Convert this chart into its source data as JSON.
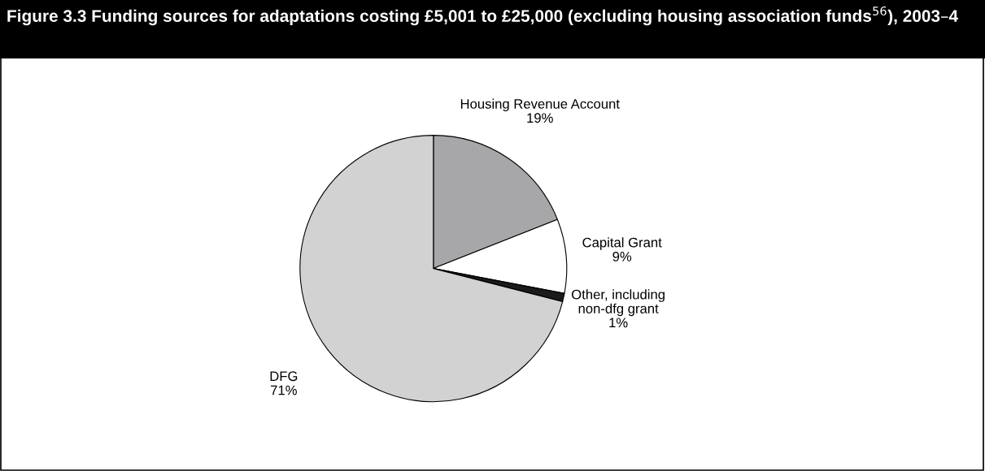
{
  "chart_data": {
    "type": "pie",
    "title": "Figure 3.3 Funding sources for adaptations costing £5,001 to £25,000 (excluding housing association funds$^{56}$), 2003–4",
    "categories": [
      "Housing Revenue Account",
      "Capital Grant",
      "Other, including\nnon-dfg grant",
      "DFG"
    ],
    "values": [
      19,
      9,
      1,
      71
    ],
    "value_labels": [
      "19%",
      "9%",
      "1%",
      "71%"
    ],
    "colors": [
      "#a7a7a9",
      "#ffffff",
      "#1a1a1a",
      "#d2d2d3"
    ]
  }
}
